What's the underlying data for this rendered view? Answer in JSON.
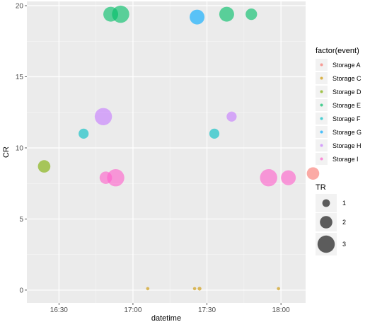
{
  "chart_data": {
    "type": "scatter",
    "xlabel": "datetime",
    "ylabel": "CR",
    "x_ticks": [
      "16:30",
      "17:00",
      "17:30",
      "18:00"
    ],
    "y_ticks": [
      0,
      5,
      10,
      15,
      20
    ],
    "xlim": [
      "16:17",
      "18:10"
    ],
    "ylim": [
      -0.9,
      20.3
    ],
    "grid": true,
    "background": "#ebebeb",
    "legend_position": "right",
    "color_legend": {
      "title": "factor(event)",
      "entries": [
        {
          "label": "Storage A",
          "color": "#F8766D"
        },
        {
          "label": "Storage C",
          "color": "#CD9600"
        },
        {
          "label": "Storage D",
          "color": "#7CAE00"
        },
        {
          "label": "Storage E",
          "color": "#00BE67"
        },
        {
          "label": "Storage F",
          "color": "#00BFC4"
        },
        {
          "label": "Storage G",
          "color": "#00A9FF"
        },
        {
          "label": "Storage H",
          "color": "#C77CFF"
        },
        {
          "label": "Storage I",
          "color": "#FF61CC"
        }
      ]
    },
    "size_legend": {
      "title": "TR",
      "entries": [
        {
          "label": "1",
          "value": 1
        },
        {
          "label": "2",
          "value": 2
        },
        {
          "label": "3",
          "value": 3
        }
      ]
    },
    "points": [
      {
        "x": "16:24",
        "y": 8.7,
        "tr": 2,
        "series": "Storage D"
      },
      {
        "x": "16:40",
        "y": 11.0,
        "tr": 1.5,
        "series": "Storage F"
      },
      {
        "x": "16:48",
        "y": 12.2,
        "tr": 3,
        "series": "Storage H"
      },
      {
        "x": "16:49",
        "y": 7.9,
        "tr": 2,
        "series": "Storage I"
      },
      {
        "x": "16:51",
        "y": 19.4,
        "tr": 2.5,
        "series": "Storage E"
      },
      {
        "x": "16:53",
        "y": 7.9,
        "tr": 3,
        "series": "Storage I"
      },
      {
        "x": "16:55",
        "y": 19.4,
        "tr": 3,
        "series": "Storage E"
      },
      {
        "x": "17:06",
        "y": 0.1,
        "tr": 0.1,
        "series": "Storage C"
      },
      {
        "x": "17:25",
        "y": 0.1,
        "tr": 0.1,
        "series": "Storage C"
      },
      {
        "x": "17:26",
        "y": 19.2,
        "tr": 2.5,
        "series": "Storage G"
      },
      {
        "x": "17:27",
        "y": 0.1,
        "tr": 0.2,
        "series": "Storage C"
      },
      {
        "x": "17:33",
        "y": 11.0,
        "tr": 1.5,
        "series": "Storage F"
      },
      {
        "x": "17:38",
        "y": 19.4,
        "tr": 2.5,
        "series": "Storage E"
      },
      {
        "x": "17:40",
        "y": 12.2,
        "tr": 1.5,
        "series": "Storage H"
      },
      {
        "x": "17:48",
        "y": 19.4,
        "tr": 1.8,
        "series": "Storage E"
      },
      {
        "x": "17:59",
        "y": 0.1,
        "tr": 0.1,
        "series": "Storage C"
      },
      {
        "x": "17:55",
        "y": 7.9,
        "tr": 3,
        "series": "Storage I"
      },
      {
        "x": "18:03",
        "y": 7.9,
        "tr": 2.5,
        "series": "Storage I"
      },
      {
        "x": "18:13",
        "y": 8.2,
        "tr": 2,
        "series": "Storage A"
      }
    ]
  }
}
